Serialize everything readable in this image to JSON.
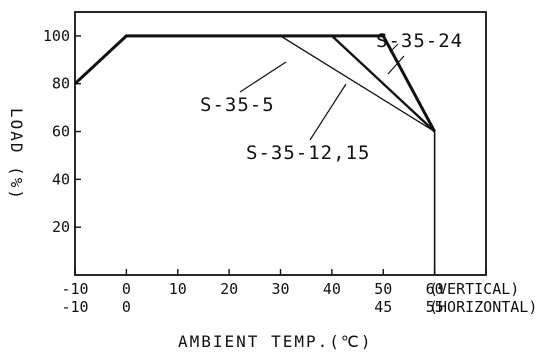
{
  "chart_data": {
    "type": "line",
    "title": "",
    "xlabel": "AMBIENT TEMP.(℃)",
    "ylabel": "LOAD (%)",
    "xlim": [
      -10,
      70
    ],
    "ylim": [
      0,
      110
    ],
    "x_ticks": [
      -10,
      0,
      10,
      20,
      30,
      40,
      50,
      60,
      70
    ],
    "y_ticks": [
      20,
      40,
      60,
      80,
      100
    ],
    "x_tick_labels_vertical": [
      "-10",
      "0",
      "10",
      "20",
      "30",
      "40",
      "50",
      "60"
    ],
    "x_tick_labels_horizontal": [
      "-10",
      "0",
      "",
      "",
      "",
      "",
      "45",
      "55"
    ],
    "x_axis_notes": {
      "vertical": "(VERTICAL)",
      "horizontal": "(HORIZONTAL)"
    },
    "grid": false,
    "series": [
      {
        "name": "S-35-24",
        "x": [
          -10,
          0,
          50,
          60
        ],
        "y": [
          80,
          100,
          100,
          60
        ]
      },
      {
        "name": "S-35-12,15",
        "x": [
          -10,
          0,
          40,
          60
        ],
        "y": [
          80,
          100,
          100,
          60
        ]
      },
      {
        "name": "S-35-5",
        "x": [
          -10,
          0,
          30,
          60
        ],
        "y": [
          80,
          100,
          100,
          60
        ]
      }
    ],
    "cutoff": {
      "x": 60,
      "y_from": 60,
      "y_to": 0
    }
  }
}
